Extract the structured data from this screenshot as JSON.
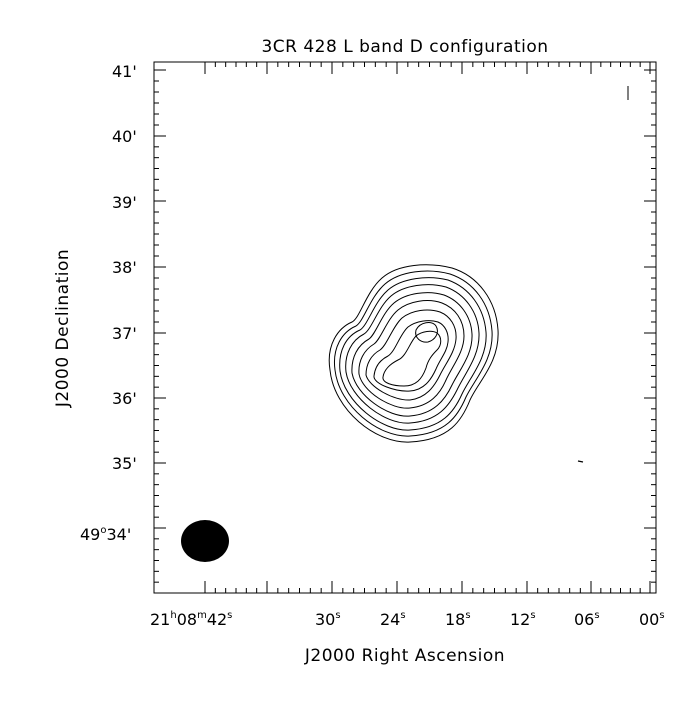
{
  "title": "3CR 428 L band D configuration",
  "xlabel": "J2000 Right Ascension",
  "ylabel": "J2000 Declination",
  "x_ticks": [
    {
      "h": "21",
      "hs": "h",
      "m": "08",
      "ms": "m",
      "s": "42",
      "ss": "s"
    },
    {
      "s": "30",
      "ss": "s"
    },
    {
      "s": "24",
      "ss": "s"
    },
    {
      "s": "18",
      "ss": "s"
    },
    {
      "s": "12",
      "ss": "s"
    },
    {
      "s": "06",
      "ss": "s"
    },
    {
      "s": "00",
      "ss": "s"
    }
  ],
  "y_ticks": [
    {
      "deg": "49",
      "degsym": "o",
      "min": "34",
      "minsym": "'"
    },
    {
      "min": "35",
      "minsym": "'"
    },
    {
      "min": "36",
      "minsym": "'"
    },
    {
      "min": "37",
      "minsym": "'"
    },
    {
      "min": "38",
      "minsym": "'"
    },
    {
      "min": "39",
      "minsym": "'"
    },
    {
      "min": "40",
      "minsym": "'"
    },
    {
      "min": "41",
      "minsym": "'"
    }
  ],
  "colors": {
    "ink": "#000000",
    "background": "#ffffff"
  }
}
